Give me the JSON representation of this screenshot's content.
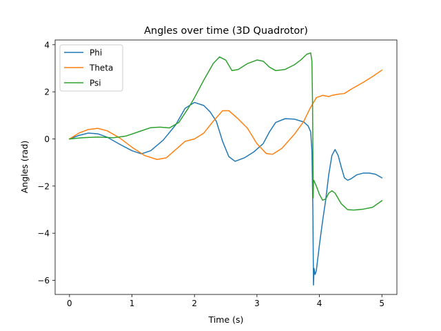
{
  "chart_data": {
    "type": "line",
    "title": "Angles over time (3D Quadrotor)",
    "xlabel": "Time (s)",
    "ylabel": "Angles (rad)",
    "xlim": [
      -0.23,
      5.24
    ],
    "ylim": [
      -6.6,
      4.2
    ],
    "xticks": [
      0,
      1,
      2,
      3,
      4,
      5
    ],
    "xtick_labels": [
      "0",
      "1",
      "2",
      "3",
      "4",
      "5"
    ],
    "yticks": [
      -6,
      -4,
      -2,
      0,
      2,
      4
    ],
    "ytick_labels": [
      "−6",
      "−4",
      "−2",
      "0",
      "2",
      "4"
    ],
    "grid": false,
    "legend_position": "upper-left",
    "series": [
      {
        "name": "Phi",
        "color": "#1f77b4",
        "points": [
          [
            0,
            0
          ],
          [
            0.15,
            0.15
          ],
          [
            0.3,
            0.25
          ],
          [
            0.45,
            0.22
          ],
          [
            0.6,
            0.08
          ],
          [
            0.8,
            -0.22
          ],
          [
            1.0,
            -0.5
          ],
          [
            1.15,
            -0.63
          ],
          [
            1.3,
            -0.5
          ],
          [
            1.5,
            -0.05
          ],
          [
            1.7,
            0.6
          ],
          [
            1.85,
            1.3
          ],
          [
            2.0,
            1.55
          ],
          [
            2.15,
            1.42
          ],
          [
            2.25,
            1.15
          ],
          [
            2.35,
            0.75
          ],
          [
            2.45,
            -0.1
          ],
          [
            2.55,
            -0.75
          ],
          [
            2.65,
            -0.95
          ],
          [
            2.8,
            -0.8
          ],
          [
            2.95,
            -0.55
          ],
          [
            3.1,
            -0.2
          ],
          [
            3.2,
            0.3
          ],
          [
            3.3,
            0.7
          ],
          [
            3.45,
            0.86
          ],
          [
            3.6,
            0.84
          ],
          [
            3.75,
            0.72
          ],
          [
            3.82,
            0.55
          ],
          [
            3.86,
            0.3
          ],
          [
            3.88,
            -0.5
          ],
          [
            3.895,
            -3.0
          ],
          [
            3.905,
            -6.2
          ],
          [
            3.915,
            -5.5
          ],
          [
            3.93,
            -5.75
          ],
          [
            3.95,
            -5.6
          ],
          [
            4.0,
            -4.5
          ],
          [
            4.05,
            -3.5
          ],
          [
            4.1,
            -2.6
          ],
          [
            4.15,
            -1.5
          ],
          [
            4.2,
            -0.7
          ],
          [
            4.25,
            -0.45
          ],
          [
            4.3,
            -0.7
          ],
          [
            4.35,
            -1.2
          ],
          [
            4.4,
            -1.65
          ],
          [
            4.45,
            -1.75
          ],
          [
            4.5,
            -1.7
          ],
          [
            4.6,
            -1.52
          ],
          [
            4.7,
            -1.45
          ],
          [
            4.8,
            -1.45
          ],
          [
            4.9,
            -1.5
          ],
          [
            5.0,
            -1.65
          ]
        ]
      },
      {
        "name": "Theta",
        "color": "#ff7f0e",
        "points": [
          [
            0,
            0
          ],
          [
            0.15,
            0.25
          ],
          [
            0.3,
            0.4
          ],
          [
            0.45,
            0.45
          ],
          [
            0.6,
            0.35
          ],
          [
            0.8,
            0.05
          ],
          [
            1.0,
            -0.35
          ],
          [
            1.2,
            -0.7
          ],
          [
            1.4,
            -0.87
          ],
          [
            1.55,
            -0.8
          ],
          [
            1.7,
            -0.45
          ],
          [
            1.85,
            -0.1
          ],
          [
            2.0,
            0.0
          ],
          [
            2.15,
            0.25
          ],
          [
            2.3,
            0.75
          ],
          [
            2.45,
            1.2
          ],
          [
            2.55,
            1.2
          ],
          [
            2.7,
            0.85
          ],
          [
            2.85,
            0.45
          ],
          [
            3.0,
            -0.2
          ],
          [
            3.15,
            -0.62
          ],
          [
            3.25,
            -0.65
          ],
          [
            3.4,
            -0.4
          ],
          [
            3.6,
            0.2
          ],
          [
            3.75,
            0.75
          ],
          [
            3.85,
            1.3
          ],
          [
            3.95,
            1.75
          ],
          [
            4.05,
            1.85
          ],
          [
            4.15,
            1.8
          ],
          [
            4.2,
            1.85
          ],
          [
            4.3,
            1.9
          ],
          [
            4.4,
            1.93
          ],
          [
            4.5,
            2.1
          ],
          [
            4.7,
            2.4
          ],
          [
            4.85,
            2.65
          ],
          [
            5.0,
            2.92
          ]
        ]
      },
      {
        "name": "Psi",
        "color": "#2ca02c",
        "points": [
          [
            0,
            0
          ],
          [
            0.2,
            0.05
          ],
          [
            0.45,
            0.08
          ],
          [
            0.7,
            0.05
          ],
          [
            0.9,
            0.12
          ],
          [
            1.1,
            0.3
          ],
          [
            1.3,
            0.48
          ],
          [
            1.45,
            0.5
          ],
          [
            1.6,
            0.47
          ],
          [
            1.75,
            0.7
          ],
          [
            1.9,
            1.3
          ],
          [
            2.0,
            1.75
          ],
          [
            2.15,
            2.5
          ],
          [
            2.3,
            3.2
          ],
          [
            2.4,
            3.48
          ],
          [
            2.5,
            3.35
          ],
          [
            2.6,
            2.9
          ],
          [
            2.7,
            2.95
          ],
          [
            2.85,
            3.2
          ],
          [
            3.0,
            3.35
          ],
          [
            3.1,
            3.3
          ],
          [
            3.2,
            3.05
          ],
          [
            3.3,
            2.9
          ],
          [
            3.45,
            2.95
          ],
          [
            3.6,
            3.15
          ],
          [
            3.7,
            3.35
          ],
          [
            3.8,
            3.6
          ],
          [
            3.86,
            3.65
          ],
          [
            3.88,
            3.3
          ],
          [
            3.89,
            1.5
          ],
          [
            3.895,
            -0.5
          ],
          [
            3.9,
            -2.5
          ],
          [
            3.905,
            -1.8
          ],
          [
            3.91,
            -1.75
          ],
          [
            3.95,
            -2.0
          ],
          [
            4.0,
            -2.35
          ],
          [
            4.05,
            -2.6
          ],
          [
            4.1,
            -2.55
          ],
          [
            4.15,
            -2.3
          ],
          [
            4.2,
            -2.2
          ],
          [
            4.25,
            -2.3
          ],
          [
            4.35,
            -2.75
          ],
          [
            4.45,
            -3.0
          ],
          [
            4.55,
            -3.02
          ],
          [
            4.7,
            -2.98
          ],
          [
            4.85,
            -2.9
          ],
          [
            5.0,
            -2.62
          ]
        ]
      }
    ]
  }
}
